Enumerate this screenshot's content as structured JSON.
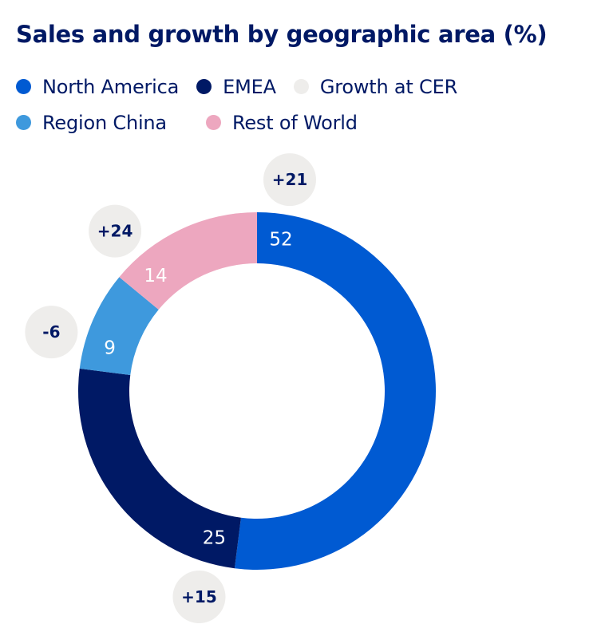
{
  "chart_data": {
    "type": "pie",
    "variant": "donut",
    "title": "Sales and growth by geographic area (%)",
    "unit": "%",
    "growth_legend": {
      "label": "Growth at CER",
      "color": "#eeedeb"
    },
    "slices": [
      {
        "name": "North America",
        "value": 52,
        "label": "52",
        "growth": 21,
        "growth_label": "+21",
        "color": "#005ad2"
      },
      {
        "name": "EMEA",
        "value": 25,
        "label": "25",
        "growth": 15,
        "growth_label": "+15",
        "color": "#001965"
      },
      {
        "name": "Region China",
        "value": 9,
        "label": "9",
        "growth": -6,
        "growth_label": "-6",
        "color": "#3e99dd"
      },
      {
        "name": "Rest of World",
        "value": 14,
        "label": "14",
        "growth": 24,
        "growth_label": "+24",
        "color": "#eda7bf"
      }
    ],
    "legend": {
      "placement": "top-left",
      "rows": [
        [
          {
            "label": "North America",
            "color": "#005ad2"
          },
          {
            "label": "EMEA",
            "color": "#001965"
          },
          {
            "label": "Growth at CER",
            "color": "#eeedeb"
          }
        ],
        [
          {
            "label": "Region China",
            "color": "#3e99dd"
          },
          {
            "label": "Rest of World",
            "color": "#eda7bf"
          }
        ]
      ]
    },
    "start_angle_deg": 0,
    "direction": "clockwise"
  }
}
